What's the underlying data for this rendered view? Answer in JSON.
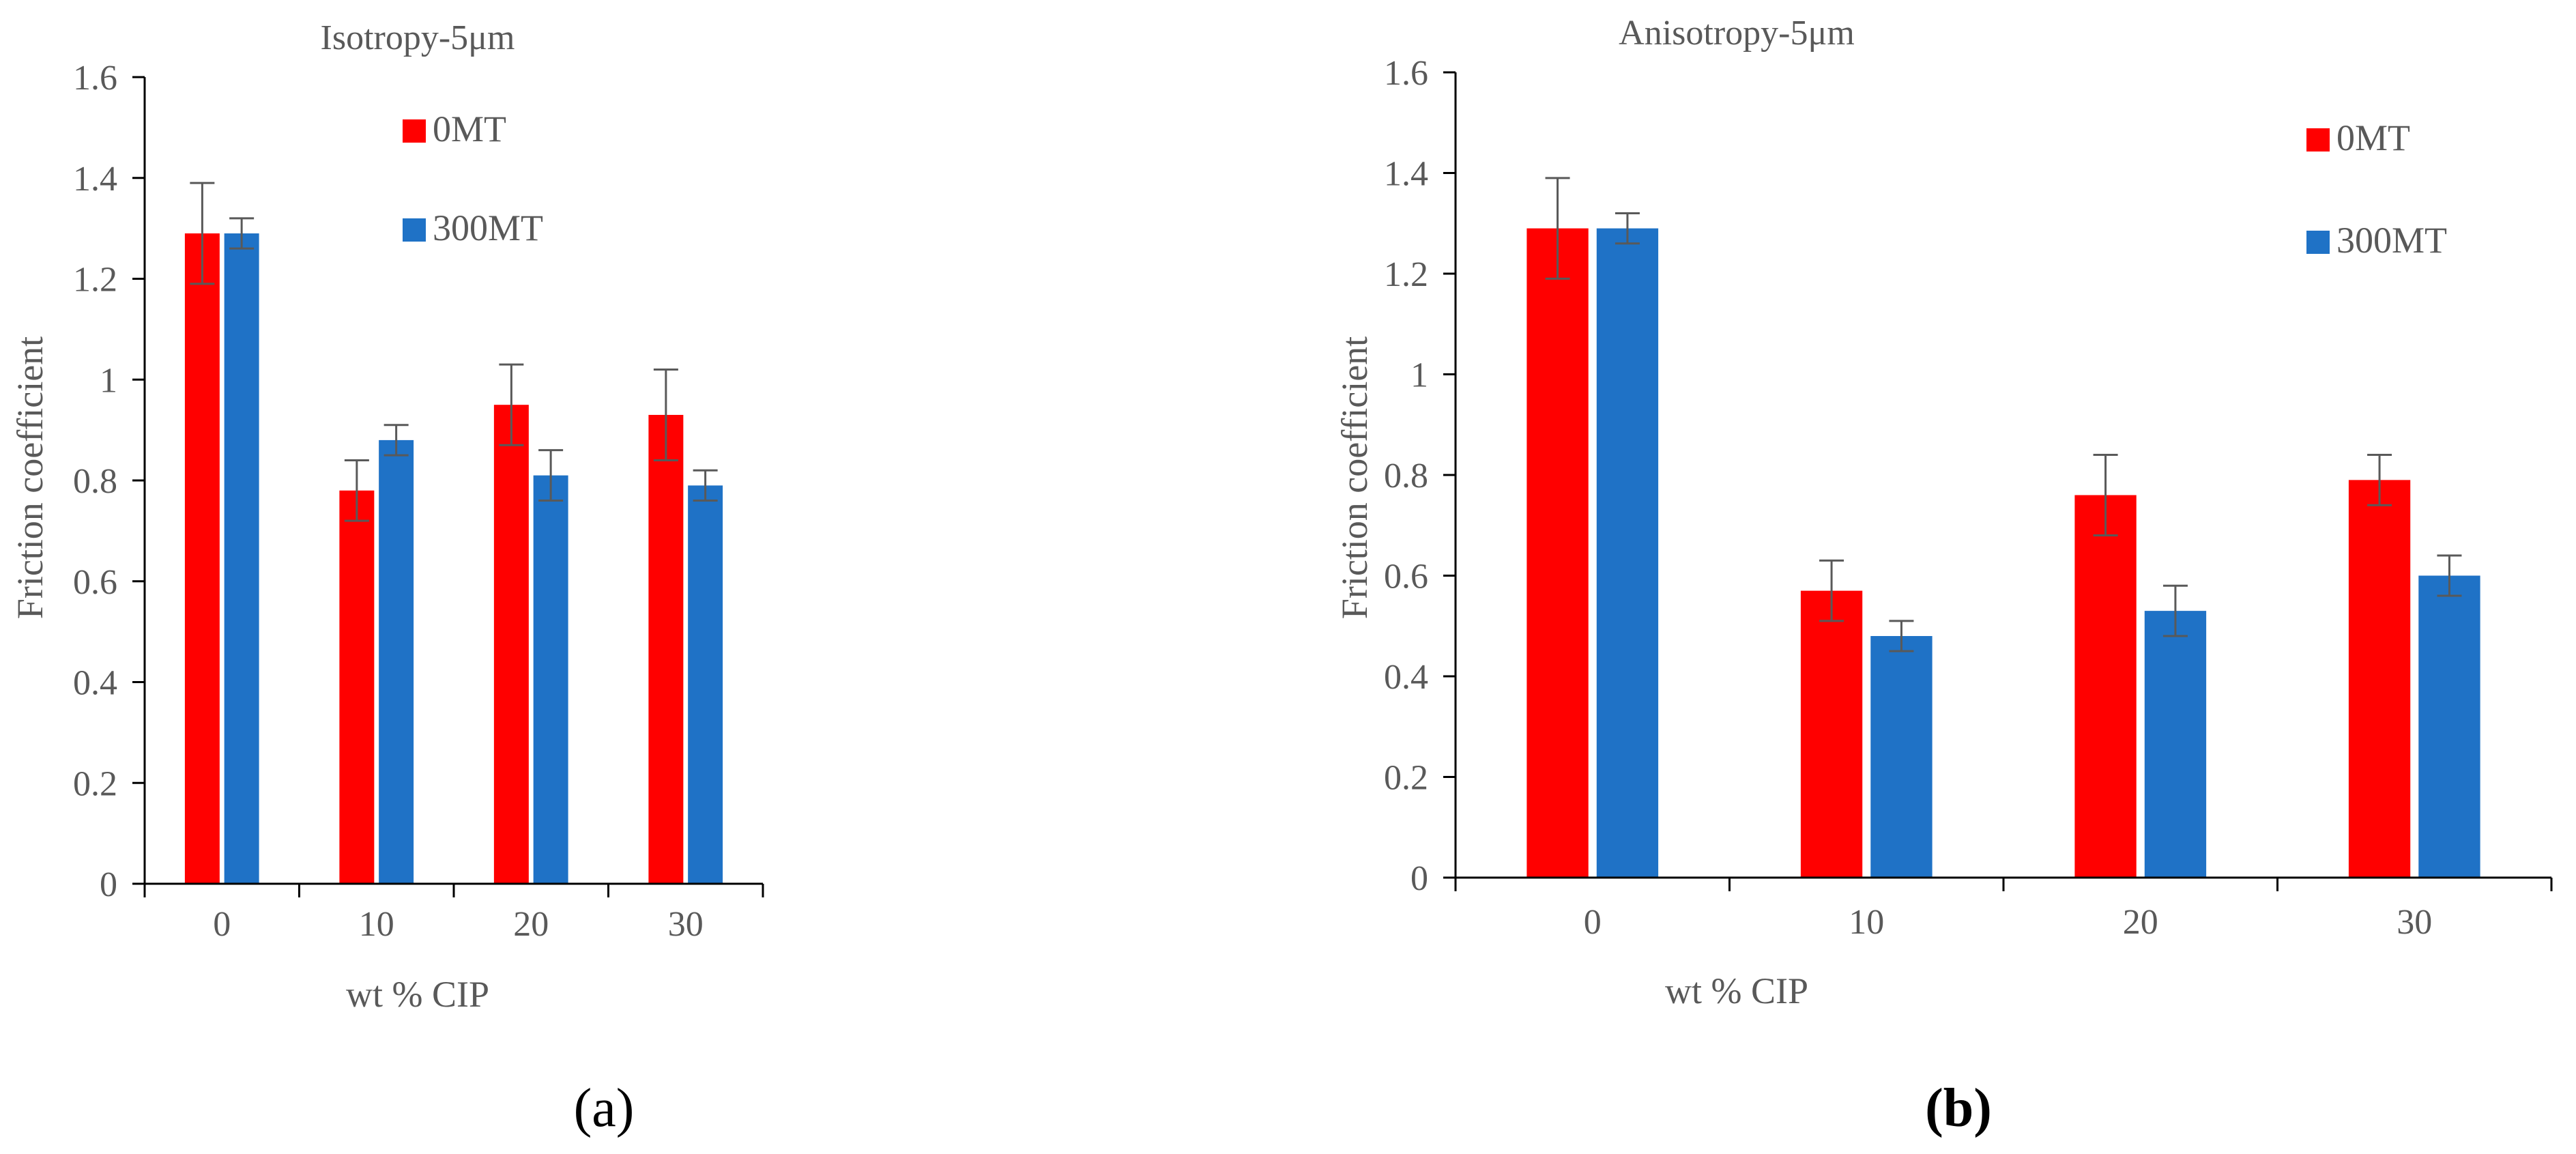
{
  "colors": {
    "series_0": "#ff0000",
    "series_1": "#1f72c6",
    "axis": "#000000",
    "text": "#595959",
    "error": "#595959"
  },
  "panels": [
    {
      "label_open": "(",
      "label_letter": "a",
      "label_close": ")"
    },
    {
      "label_open": "(",
      "label_letter": "b",
      "label_close": ")"
    }
  ],
  "chart_data": [
    {
      "type": "bar",
      "title": "Isotropy-5μm",
      "xlabel": "wt % CIP",
      "ylabel": "Friction coefficient",
      "ylim": [
        0,
        1.6
      ],
      "yticks": [
        "0",
        "0.2",
        "0.4",
        "0.6",
        "0.8",
        "1",
        "1.2",
        "1.4",
        "1.6"
      ],
      "categories": [
        "0",
        "10",
        "20",
        "30"
      ],
      "series": [
        {
          "name": "0MT",
          "values": [
            1.29,
            0.78,
            0.95,
            0.93
          ],
          "errors": [
            0.1,
            0.06,
            0.08,
            0.09
          ]
        },
        {
          "name": "300MT",
          "values": [
            1.29,
            0.88,
            0.81,
            0.79
          ],
          "errors": [
            0.03,
            0.03,
            0.05,
            0.03
          ]
        }
      ],
      "legend_position": "top-center"
    },
    {
      "type": "bar",
      "title": "Anisotropy-5μm",
      "xlabel": "wt % CIP",
      "ylabel": "Friction coefficient",
      "ylim": [
        0,
        1.6
      ],
      "yticks": [
        "0",
        "0.2",
        "0.4",
        "0.6",
        "0.8",
        "1",
        "1.2",
        "1.4",
        "1.6"
      ],
      "categories": [
        "0",
        "10",
        "20",
        "30"
      ],
      "series": [
        {
          "name": "0MT",
          "values": [
            1.29,
            0.57,
            0.76,
            0.79
          ],
          "errors": [
            0.1,
            0.06,
            0.08,
            0.05
          ]
        },
        {
          "name": "300MT",
          "values": [
            1.29,
            0.48,
            0.53,
            0.6
          ],
          "errors": [
            0.03,
            0.03,
            0.05,
            0.04
          ]
        }
      ],
      "legend_position": "top-right"
    }
  ]
}
